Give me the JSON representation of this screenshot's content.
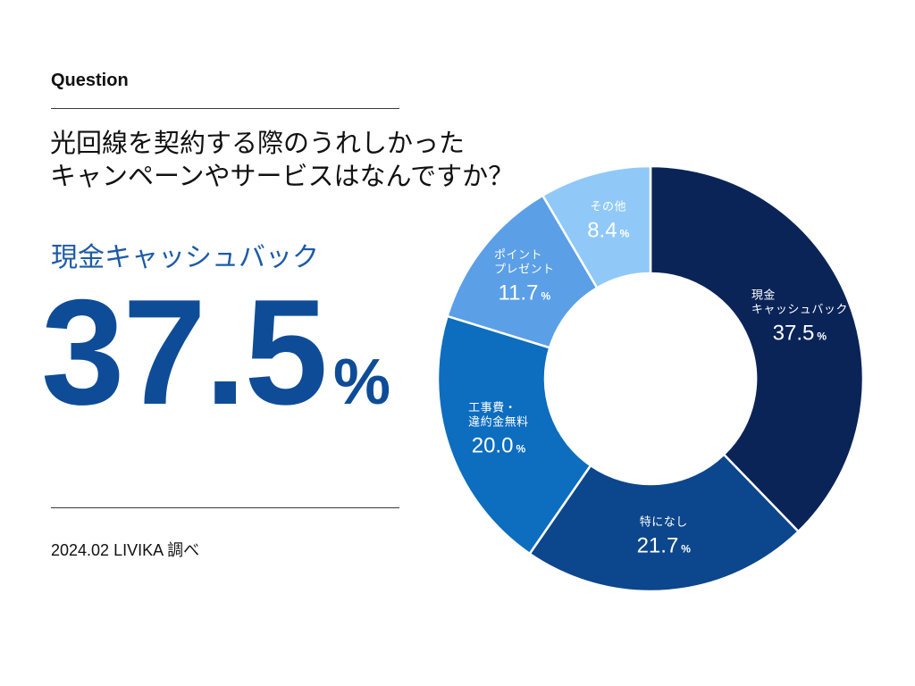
{
  "header": {
    "label": "Question"
  },
  "question": {
    "lines": [
      "光回線を契約する際のうれしかった",
      "キャンペーンやサービスはなんですか？"
    ]
  },
  "highlight": {
    "label": "現金キャッシュバック",
    "value": "37.5",
    "unit": "%"
  },
  "footer": {
    "source": "2024.02 LIVIKA 調べ"
  },
  "colors": {
    "text": "#111111",
    "rule": "#3a3a3a",
    "highlight_label": "#1d5ba7",
    "highlight_value": "#0e4c98",
    "slice_label": "#ffffff",
    "background": "#ffffff"
  },
  "chart_data": {
    "type": "pie",
    "donut": true,
    "categories": [
      "現金\nキャッシュバック",
      "特になし",
      "工事費・\n違約金無料",
      "ポイント\nプレゼント",
      "その他"
    ],
    "values": [
      37.5,
      21.7,
      20.0,
      11.7,
      8.4
    ],
    "unit": "%",
    "colors": [
      "#0a2458",
      "#0c468c",
      "#0d6dbf",
      "#5b9fe7",
      "#90c9f8"
    ]
  }
}
